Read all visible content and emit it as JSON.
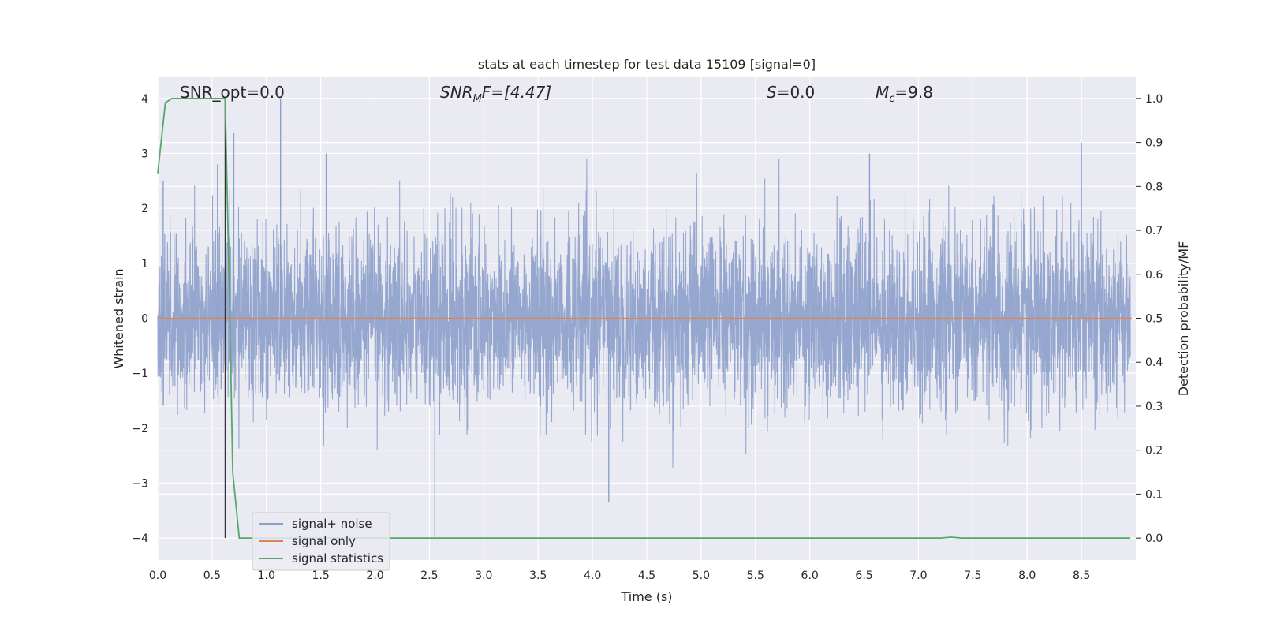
{
  "chart_data": {
    "type": "line",
    "title": "stats at each timestep for test data 15109 [signal=0]",
    "xlabel": "Time (s)",
    "ylabel": "Whitened strain",
    "y2label": "Detection probability/MF",
    "xlim": [
      0.0,
      9.0
    ],
    "ylim": [
      -4.4,
      4.4
    ],
    "y2lim": [
      -0.05,
      1.05
    ],
    "xticks": [
      "0.0",
      "0.5",
      "1.0",
      "1.5",
      "2.0",
      "2.5",
      "3.0",
      "3.5",
      "4.0",
      "4.5",
      "5.0",
      "5.5",
      "6.0",
      "6.5",
      "7.0",
      "7.5",
      "8.0",
      "8.5"
    ],
    "yticks": [
      "−4",
      "−3",
      "−2",
      "−1",
      "0",
      "1",
      "2",
      "3",
      "4"
    ],
    "y2ticks": [
      "0.0",
      "0.1",
      "0.2",
      "0.3",
      "0.4",
      "0.5",
      "0.6",
      "0.7",
      "0.8",
      "0.9",
      "1.0"
    ],
    "grid": true,
    "legend_position": "lower-left",
    "annotations": {
      "snr_opt": "SNR_opt=0.0",
      "snr_mf_label": "SNR",
      "snr_mf_sub": "M",
      "snr_mf_rest": "F=[4.47]",
      "s_label": "S",
      "s_value": "=0.0",
      "mc_label": "M",
      "mc_sub": "c",
      "mc_value": "=9.8"
    },
    "marker_line_x": 0.62,
    "series": [
      {
        "name": "signal+ noise",
        "color": "#8da0cb",
        "description_range": [
          -4.0,
          4.0
        ],
        "sample_rate_hz": 2048,
        "peaks": [
          [
            0.05,
            2.5
          ],
          [
            0.55,
            2.8
          ],
          [
            0.7,
            3.37
          ],
          [
            1.13,
            4.0
          ],
          [
            1.55,
            3.0
          ],
          [
            2.55,
            -4.0
          ],
          [
            4.15,
            -3.35
          ],
          [
            6.55,
            3.0
          ],
          [
            8.5,
            3.2
          ]
        ]
      },
      {
        "name": "signal only",
        "color": "#dd8452",
        "constant": 0.0
      },
      {
        "name": "signal statistics",
        "color": "#55a868",
        "x": [
          0.0,
          0.07,
          0.13,
          0.3,
          0.5,
          0.6,
          0.62,
          0.66,
          0.69,
          0.75,
          1.0,
          2.0,
          3.0,
          4.0,
          5.0,
          6.0,
          7.0,
          7.2,
          7.3,
          7.4,
          8.0,
          8.95
        ],
        "y": [
          0.83,
          0.99,
          1.0,
          1.0,
          1.0,
          1.0,
          1.0,
          0.55,
          0.15,
          0.0,
          0.0,
          0.0,
          0.0,
          0.0,
          0.0,
          0.0,
          0.0,
          0.0,
          0.002,
          0.0,
          0.0,
          0.0
        ]
      }
    ]
  }
}
